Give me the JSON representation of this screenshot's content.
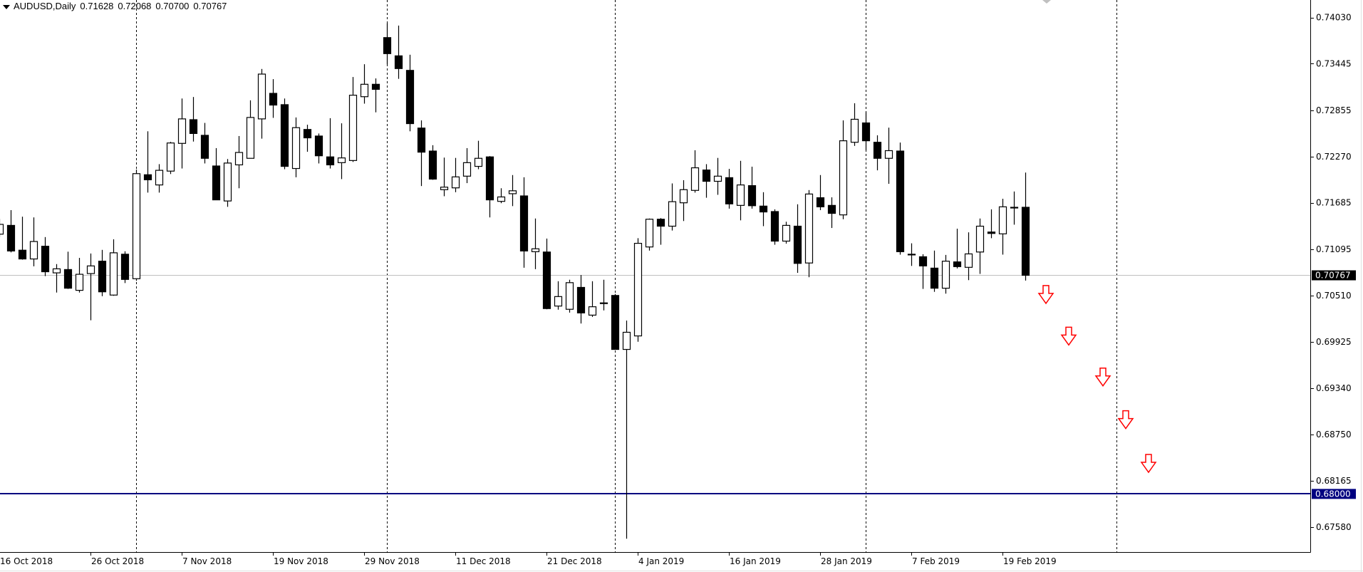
{
  "header": {
    "symbol": "AUDUSD,Daily",
    "open": "0.71628",
    "high": "0.72068",
    "low": "0.70700",
    "close": "0.70767",
    "menu_icon": "triangle-down-icon"
  },
  "chart_data": {
    "type": "candlestick",
    "title": "AUDUSD,Daily",
    "ylim": [
      0.6725,
      0.7424
    ],
    "y_ticks": [
      "0.74030",
      "0.73445",
      "0.72855",
      "0.72270",
      "0.71685",
      "0.71095",
      "0.70510",
      "0.69925",
      "0.69340",
      "0.68750",
      "0.68165",
      "0.67580"
    ],
    "x_tick_labels": [
      "16 Oct 2018",
      "26 Oct 2018",
      "7 Nov 2018",
      "19 Nov 2018",
      "29 Nov 2018",
      "11 Dec 2018",
      "21 Dec 2018",
      "4 Jan 2019",
      "16 Jan 2019",
      "28 Jan 2019",
      "7 Feb 2019",
      "19 Feb 2019"
    ],
    "period_separators": [
      "1 Nov 2018",
      "3 Dec 2018",
      "2 Jan 2019",
      "1 Feb 2019",
      "1 Mar 2019"
    ],
    "current_price": {
      "value": 0.70767,
      "label": "0.70767",
      "color": "#000000",
      "line_color": "#c0c0c0"
    },
    "horizontal_line": {
      "value": 0.68,
      "label": "0.68000",
      "color": "#000080"
    },
    "down_arrows": {
      "color": "#ff0000",
      "prices": [
        0.70637,
        0.7011,
        0.69593,
        0.69053,
        0.68499
      ]
    },
    "bull_color": "#ffffff",
    "bear_color": "#000000",
    "columns": [
      "date",
      "open",
      "high",
      "low",
      "close"
    ],
    "candles": [
      [
        "16 Oct 2018",
        0.71288,
        0.71482,
        0.71251,
        0.71412
      ],
      [
        "17 Oct 2018",
        0.71399,
        0.71592,
        0.71057,
        0.71075
      ],
      [
        "18 Oct 2018",
        0.71085,
        0.71509,
        0.70965,
        0.70974
      ],
      [
        "19 Oct 2018",
        0.70974,
        0.715,
        0.70881,
        0.71195
      ],
      [
        "22 Oct 2018",
        0.71135,
        0.71251,
        0.70757,
        0.70812
      ],
      [
        "23 Oct 2018",
        0.70798,
        0.70909,
        0.70549,
        0.70849
      ],
      [
        "24 Oct 2018",
        0.7084,
        0.71066,
        0.70595,
        0.70604
      ],
      [
        "25 Oct 2018",
        0.70577,
        0.70988,
        0.70549,
        0.7078
      ],
      [
        "26 Oct 2018",
        0.70789,
        0.71043,
        0.70198,
        0.70886
      ],
      [
        "29 Oct 2018",
        0.70946,
        0.71089,
        0.70503,
        0.70558
      ],
      [
        "30 Oct 2018",
        0.70517,
        0.71223,
        0.70508,
        0.71052
      ],
      [
        "31 Oct 2018",
        0.71034,
        0.71071,
        0.70669,
        0.70715
      ],
      [
        "1 Nov 2018",
        0.70724,
        0.72105,
        0.70697,
        0.72054
      ],
      [
        "2 Nov 2018",
        0.7204,
        0.7259,
        0.71814,
        0.71976
      ],
      [
        "5 Nov 2018",
        0.71911,
        0.72174,
        0.71814,
        0.72096
      ],
      [
        "6 Nov 2018",
        0.72086,
        0.72456,
        0.72049,
        0.72442
      ],
      [
        "7 Nov 2018",
        0.72437,
        0.73005,
        0.72119,
        0.72747
      ],
      [
        "8 Nov 2018",
        0.72737,
        0.73024,
        0.7246,
        0.72562
      ],
      [
        "9 Nov 2018",
        0.72539,
        0.72696,
        0.72183,
        0.72248
      ],
      [
        "12 Nov 2018",
        0.72151,
        0.72377,
        0.71722,
        0.71722
      ],
      [
        "13 Nov 2018",
        0.71708,
        0.72239,
        0.71634,
        0.72188
      ],
      [
        "14 Nov 2018",
        0.72165,
        0.7253,
        0.71869,
        0.72322
      ],
      [
        "15 Nov 2018",
        0.72248,
        0.72982,
        0.72248,
        0.72765
      ],
      [
        "16 Nov 2018",
        0.72747,
        0.73379,
        0.72497,
        0.73314
      ],
      [
        "19 Nov 2018",
        0.7307,
        0.7325,
        0.7276,
        0.72922
      ],
      [
        "20 Nov 2018",
        0.72927,
        0.73005,
        0.7211,
        0.72146
      ],
      [
        "21 Nov 2018",
        0.72119,
        0.72765,
        0.72008,
        0.72636
      ],
      [
        "22 Nov 2018",
        0.72613,
        0.72673,
        0.72331,
        0.72507
      ],
      [
        "23 Nov 2018",
        0.7253,
        0.72562,
        0.72183,
        0.7228
      ],
      [
        "26 Nov 2018",
        0.72266,
        0.72756,
        0.72119,
        0.72165
      ],
      [
        "27 Nov 2018",
        0.72193,
        0.72691,
        0.71985,
        0.72253
      ],
      [
        "28 Nov 2018",
        0.7222,
        0.73277,
        0.72202,
        0.73047
      ],
      [
        "29 Nov 2018",
        0.73028,
        0.73439,
        0.7294,
        0.73185
      ],
      [
        "30 Nov 2018",
        0.73185,
        0.73259,
        0.7283,
        0.73121
      ],
      [
        "3 Dec 2018",
        0.73776,
        0.73956,
        0.73439,
        0.73573
      ],
      [
        "4 Dec 2018",
        0.73545,
        0.73928,
        0.73254,
        0.73384
      ],
      [
        "5 Dec 2018",
        0.73361,
        0.73559,
        0.7259,
        0.72687
      ],
      [
        "6 Dec 2018",
        0.72631,
        0.72728,
        0.71897,
        0.72326
      ],
      [
        "7 Dec 2018",
        0.7234,
        0.72414,
        0.71976,
        0.71985
      ],
      [
        "10 Dec 2018",
        0.71851,
        0.72257,
        0.71768,
        0.71883
      ],
      [
        "11 Dec 2018",
        0.71874,
        0.72253,
        0.71819,
        0.72013
      ],
      [
        "12 Dec 2018",
        0.72022,
        0.72377,
        0.71934,
        0.72193
      ],
      [
        "13 Dec 2018",
        0.72146,
        0.7247,
        0.7211,
        0.72248
      ],
      [
        "14 Dec 2018",
        0.72266,
        0.72276,
        0.715,
        0.71722
      ],
      [
        "17 Dec 2018",
        0.71703,
        0.71869,
        0.7168,
        0.71759
      ],
      [
        "18 Dec 2018",
        0.718,
        0.72036,
        0.71643,
        0.71837
      ],
      [
        "19 Dec 2018",
        0.71772,
        0.72008,
        0.70863,
        0.71075
      ],
      [
        "20 Dec 2018",
        0.71066,
        0.71486,
        0.70845,
        0.71103
      ],
      [
        "21 Dec 2018",
        0.71062,
        0.71232,
        0.70337,
        0.70346
      ],
      [
        "24 Dec 2018",
        0.70378,
        0.70692,
        0.70332,
        0.70498
      ],
      [
        "26 Dec 2018",
        0.70337,
        0.70711,
        0.70295,
        0.70674
      ],
      [
        "27 Dec 2018",
        0.70614,
        0.70771,
        0.70157,
        0.70291
      ],
      [
        "28 Dec 2018",
        0.70263,
        0.70692,
        0.7024,
        0.70369
      ],
      [
        "31 Dec 2018",
        0.70412,
        0.70711,
        0.70323,
        0.70418
      ],
      [
        "2 Jan 2019",
        0.70512,
        0.70531,
        0.69829,
        0.69829
      ],
      [
        "3 Jan 2019",
        0.69829,
        0.70194,
        0.67433,
        0.70046
      ],
      [
        "4 Jan 2019",
        0.7,
        0.71237,
        0.69926,
        0.71172
      ],
      [
        "7 Jan 2019",
        0.71126,
        0.71486,
        0.7108,
        0.71477
      ],
      [
        "8 Jan 2019",
        0.71477,
        0.71491,
        0.71154,
        0.71389
      ],
      [
        "9 Jan 2019",
        0.71389,
        0.7193,
        0.71334,
        0.71699
      ],
      [
        "10 Jan 2019",
        0.71685,
        0.71971,
        0.71454,
        0.71851
      ],
      [
        "11 Jan 2019",
        0.71842,
        0.7235,
        0.71814,
        0.72128
      ],
      [
        "14 Jan 2019",
        0.721,
        0.72174,
        0.71749,
        0.71957
      ],
      [
        "15 Jan 2019",
        0.71957,
        0.72253,
        0.71786,
        0.72022
      ],
      [
        "16 Jan 2019",
        0.72003,
        0.72114,
        0.71611,
        0.71671
      ],
      [
        "17 Jan 2019",
        0.71652,
        0.72216,
        0.71463,
        0.71911
      ],
      [
        "18 Jan 2019",
        0.71902,
        0.72142,
        0.71611,
        0.71648
      ],
      [
        "21 Jan 2019",
        0.71643,
        0.71819,
        0.71389,
        0.71569
      ],
      [
        "22 Jan 2019",
        0.71574,
        0.71602,
        0.71154,
        0.712
      ],
      [
        "23 Jan 2019",
        0.712,
        0.71445,
        0.71168,
        0.71399
      ],
      [
        "24 Jan 2019",
        0.71389,
        0.71666,
        0.70798,
        0.70918
      ],
      [
        "25 Jan 2019",
        0.70923,
        0.71846,
        0.70743,
        0.71796
      ],
      [
        "28 Jan 2019",
        0.71749,
        0.72036,
        0.71592,
        0.71634
      ],
      [
        "29 Jan 2019",
        0.71652,
        0.71754,
        0.71366,
        0.71551
      ],
      [
        "30 Jan 2019",
        0.71532,
        0.72728,
        0.71477,
        0.7247
      ],
      [
        "31 Jan 2019",
        0.72451,
        0.72945,
        0.72405,
        0.72742
      ],
      [
        "1 Feb 2019",
        0.72696,
        0.72834,
        0.7235,
        0.7247
      ],
      [
        "4 Feb 2019",
        0.72451,
        0.72539,
        0.72096,
        0.72248
      ],
      [
        "5 Feb 2019",
        0.72248,
        0.72636,
        0.71925,
        0.72345
      ],
      [
        "6 Feb 2019",
        0.7234,
        0.72447,
        0.71029,
        0.71066
      ],
      [
        "7 Feb 2019",
        0.71034,
        0.71172,
        0.70886,
        0.71034
      ],
      [
        "8 Feb 2019",
        0.71002,
        0.71034,
        0.70595,
        0.70886
      ],
      [
        "11 Feb 2019",
        0.70858,
        0.7108,
        0.70558,
        0.70604
      ],
      [
        "12 Feb 2019",
        0.70604,
        0.71025,
        0.70535,
        0.70946
      ],
      [
        "13 Feb 2019",
        0.70937,
        0.71357,
        0.70854,
        0.70877
      ],
      [
        "14 Feb 2019",
        0.70868,
        0.71311,
        0.70706,
        0.71038
      ],
      [
        "15 Feb 2019",
        0.71062,
        0.71486,
        0.70785,
        0.71389
      ],
      [
        "18 Feb 2019",
        0.71315,
        0.71602,
        0.71237,
        0.71297
      ],
      [
        "19 Feb 2019",
        0.71292,
        0.71736,
        0.71029,
        0.71634
      ],
      [
        "20 Feb 2019",
        0.71622,
        0.71828,
        0.71408,
        0.71628
      ],
      [
        "21 Feb 2019",
        0.71628,
        0.72068,
        0.707,
        0.70767
      ]
    ]
  }
}
